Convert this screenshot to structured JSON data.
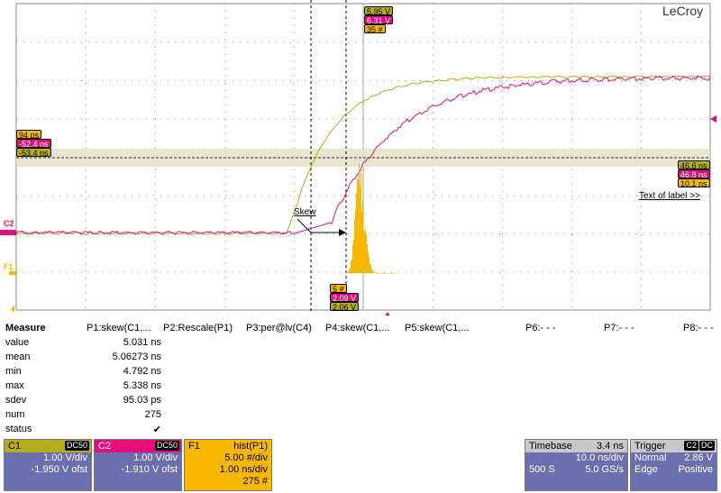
{
  "brand": "LeCroy",
  "colors": {
    "c1": "#b5ad1b",
    "c2": "#e20e7b",
    "f1": "#f8b800",
    "grid": "#888888"
  },
  "cursor_readout_top": {
    "c1": "5.95 V",
    "c2": "6.31 V",
    "f1": "35 #"
  },
  "cursor_readout_bottom": {
    "f1": "5 #",
    "c2": "2.09 V",
    "c1": "2.06 V"
  },
  "left_readout": {
    "f1": "94 ps",
    "c2": "-52.4 ns",
    "c1": "-53.4 ns"
  },
  "right_readout": {
    "c1": "46.6 ns",
    "c2": "46.8 ns",
    "f1": "10.1 ns"
  },
  "annotation": {
    "skew": "Skew",
    "text_of_label": "Text of label >>"
  },
  "channel_markers": {
    "c2": "C2",
    "f1": "F1"
  },
  "measure": {
    "title": "Measure",
    "params": [
      "P1:skew(C1,...",
      "P2:Rescale(P1)",
      "P3:per@lv(C4)",
      "P4:skew(C1,...",
      "P5:skew(C1,...",
      "P6:- - -",
      "P7:- - -",
      "P8:- - -"
    ],
    "rows": [
      {
        "label": "value",
        "v": "5.031 ns"
      },
      {
        "label": "mean",
        "v": "5.06273 ns"
      },
      {
        "label": "min",
        "v": "4.792 ns"
      },
      {
        "label": "max",
        "v": "5.338 ns"
      },
      {
        "label": "sdev",
        "v": "95.03 ps"
      },
      {
        "label": "num",
        "v": "275"
      },
      {
        "label": "status",
        "v": "✔"
      }
    ]
  },
  "panels": {
    "c1": {
      "name": "C1",
      "coupling": "DC50",
      "line1": "1.00 V/div",
      "line2": "-1.950 V ofst"
    },
    "c2": {
      "name": "C2",
      "coupling": "DC50",
      "line1": "1.00 V/div",
      "line2": "-1.910 V ofst"
    },
    "f1": {
      "name": "F1",
      "func": "hist(P1)",
      "line1": "5.00 #/div",
      "line2": "1.00 ns/div",
      "line3": "275 #"
    },
    "timebase": {
      "label": "Timebase",
      "value": "3.4 ns",
      "line1": "10.0 ns/div",
      "samples": "500 S",
      "rate": "5.0 GS/s"
    },
    "trigger": {
      "label": "Trigger",
      "source": "C2",
      "coupling": "DC",
      "mode": "Normal",
      "level": "2.86 V",
      "type": "Edge",
      "slope": "Positive"
    }
  }
}
